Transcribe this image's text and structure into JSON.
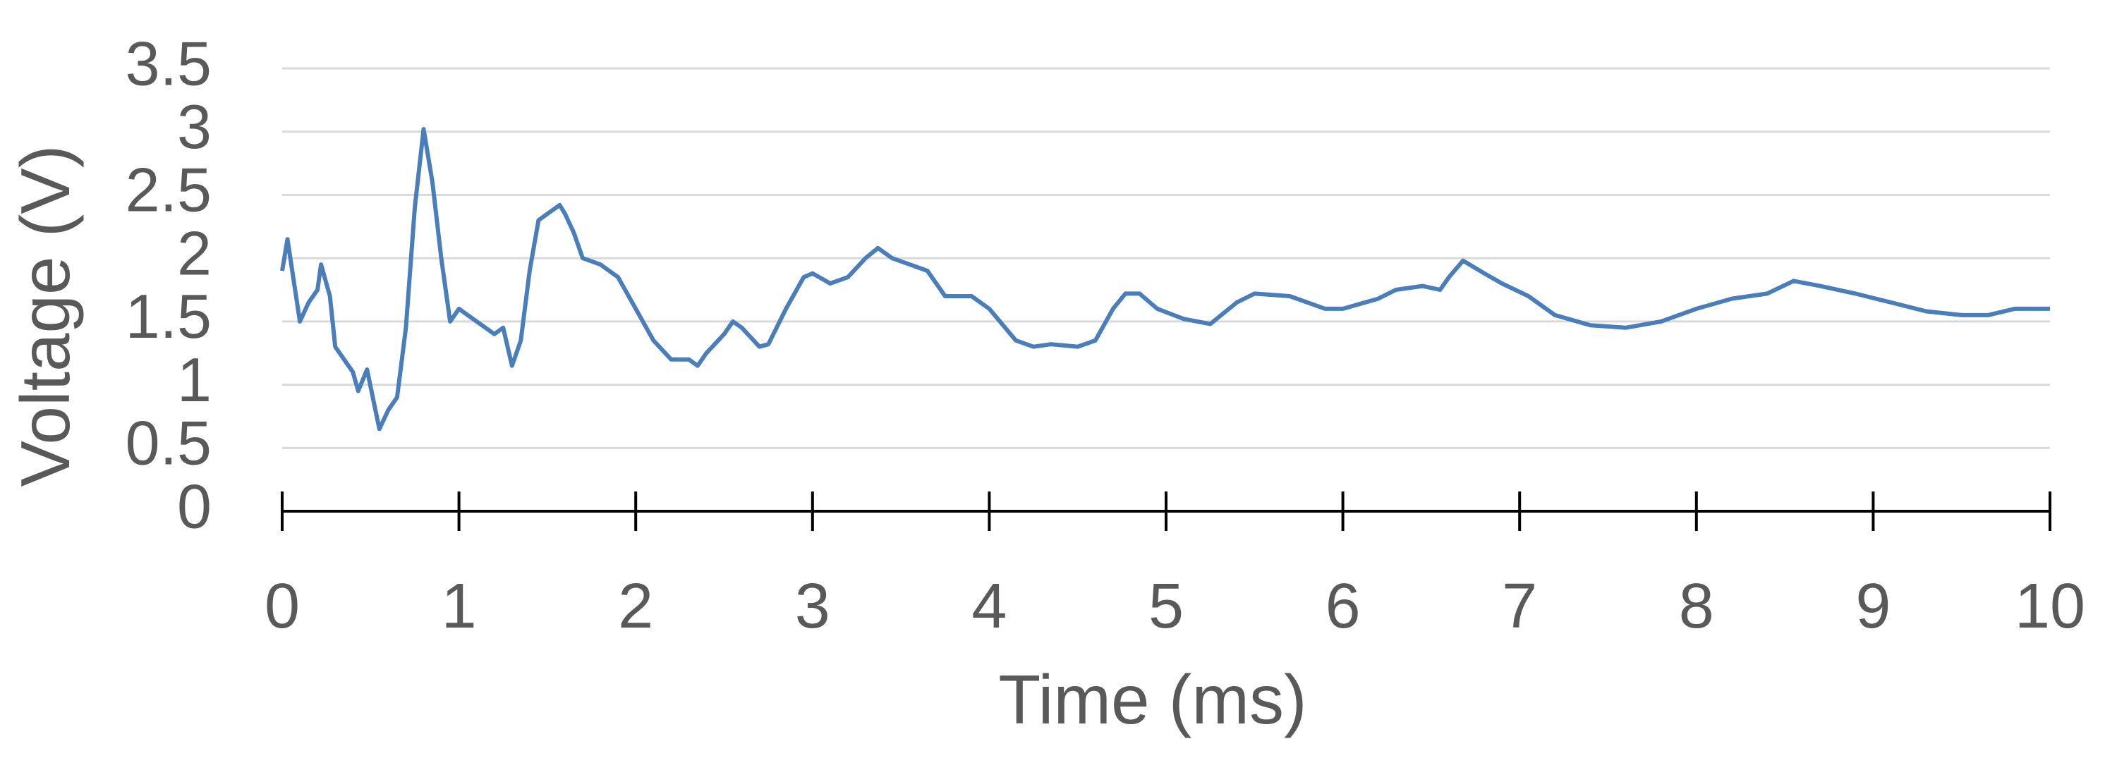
{
  "chart_data": {
    "type": "line",
    "x_label": "Time (ms)",
    "y_label": "Voltage (V)",
    "x": [
      0,
      0.03,
      0.1,
      0.15,
      0.2,
      0.22,
      0.27,
      0.3,
      0.35,
      0.4,
      0.43,
      0.48,
      0.52,
      0.55,
      0.6,
      0.65,
      0.7,
      0.75,
      0.8,
      0.85,
      0.9,
      0.95,
      1.0,
      1.05,
      1.1,
      1.15,
      1.2,
      1.25,
      1.3,
      1.35,
      1.4,
      1.45,
      1.5,
      1.57,
      1.6,
      1.65,
      1.7,
      1.8,
      1.9,
      2.0,
      2.1,
      2.2,
      2.3,
      2.35,
      2.4,
      2.5,
      2.55,
      2.6,
      2.7,
      2.75,
      2.85,
      2.95,
      3.0,
      3.1,
      3.2,
      3.3,
      3.37,
      3.45,
      3.55,
      3.65,
      3.75,
      3.9,
      4.0,
      4.15,
      4.25,
      4.35,
      4.5,
      4.6,
      4.7,
      4.77,
      4.85,
      4.95,
      5.1,
      5.25,
      5.4,
      5.5,
      5.7,
      5.9,
      6.0,
      6.2,
      6.3,
      6.45,
      6.55,
      6.6,
      6.68,
      6.8,
      6.9,
      7.05,
      7.2,
      7.4,
      7.6,
      7.8,
      8.0,
      8.2,
      8.4,
      8.55,
      8.7,
      8.9,
      9.1,
      9.3,
      9.5,
      9.65,
      9.8,
      10
    ],
    "series": [
      {
        "name": "Voltage",
        "color": "#4a7ebb",
        "values": [
          1.9,
          2.15,
          1.5,
          1.65,
          1.75,
          1.95,
          1.7,
          1.3,
          1.2,
          1.1,
          0.95,
          1.12,
          0.85,
          0.65,
          0.8,
          0.9,
          1.45,
          2.4,
          3.02,
          2.6,
          2.0,
          1.5,
          1.6,
          1.55,
          1.5,
          1.45,
          1.4,
          1.45,
          1.15,
          1.35,
          1.9,
          2.3,
          2.35,
          2.42,
          2.35,
          2.2,
          2.0,
          1.95,
          1.85,
          1.6,
          1.35,
          1.2,
          1.2,
          1.15,
          1.25,
          1.4,
          1.5,
          1.45,
          1.3,
          1.32,
          1.6,
          1.85,
          1.88,
          1.8,
          1.85,
          2.0,
          2.08,
          2.0,
          1.95,
          1.9,
          1.7,
          1.7,
          1.6,
          1.35,
          1.3,
          1.32,
          1.3,
          1.35,
          1.6,
          1.72,
          1.72,
          1.6,
          1.52,
          1.48,
          1.65,
          1.72,
          1.7,
          1.6,
          1.6,
          1.68,
          1.75,
          1.78,
          1.75,
          1.85,
          1.98,
          1.88,
          1.8,
          1.7,
          1.55,
          1.47,
          1.45,
          1.5,
          1.6,
          1.68,
          1.72,
          1.82,
          1.78,
          1.72,
          1.65,
          1.58,
          1.55,
          1.55,
          1.6,
          1.6
        ]
      }
    ],
    "xlim": [
      0,
      10
    ],
    "xticks": [
      0,
      1,
      2,
      3,
      4,
      5,
      6,
      7,
      8,
      9,
      10
    ],
    "ylim": [
      0,
      3.5
    ],
    "yticks": [
      0,
      0.5,
      1,
      1.5,
      2,
      2.5,
      3,
      3.5
    ],
    "grid": true
  }
}
